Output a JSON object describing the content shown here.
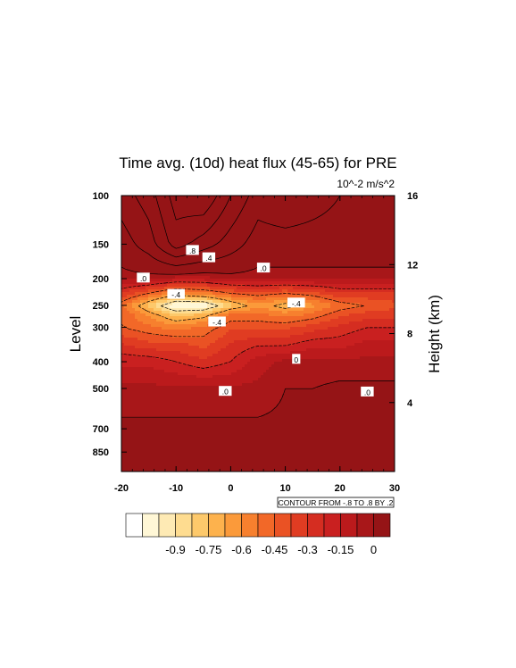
{
  "chart_data": {
    "type": "heatmap",
    "title": "Time avg. (10d) heat flux (45-65) for PRE",
    "units": "10^-2 m/s^2",
    "xlabel": "",
    "ylabel": "Level",
    "ylabel_right": "Height (km)",
    "xlim": [
      -20,
      30
    ],
    "x_ticks": [
      "-20",
      "-10",
      "0",
      "10",
      "20",
      "30"
    ],
    "y_scale": "log",
    "ylim": [
      100,
      1000
    ],
    "y_ticks": [
      "100",
      "150",
      "200",
      "250",
      "300",
      "400",
      "500",
      "700",
      "850"
    ],
    "y_right_ticks": [
      "16",
      "12",
      "8",
      "4"
    ],
    "contour_info": "CONTOUR FROM -.8 TO .8 BY .2",
    "contour_labels": [
      {
        "text": ".8",
        "x": -7,
        "p": 158
      },
      {
        "text": ".4",
        "x": -4,
        "p": 168
      },
      {
        "text": ".0",
        "x": 6,
        "p": 183
      },
      {
        "text": ".0",
        "x": -16,
        "p": 199
      },
      {
        "text": "-.4",
        "x": -10,
        "p": 228
      },
      {
        "text": "-.4",
        "x": 12,
        "p": 245
      },
      {
        "text": "-.4",
        "x": -2.5,
        "p": 287
      },
      {
        "text": "0",
        "x": 12,
        "p": 392
      },
      {
        "text": ".0",
        "x": -1,
        "p": 512
      },
      {
        "text": ".0",
        "x": 25,
        "p": 515
      }
    ],
    "fields": {
      "x": [
        -20,
        -15,
        -10,
        -5,
        0,
        5,
        10,
        15,
        20,
        25,
        30
      ],
      "p": [
        100,
        150,
        200,
        230,
        250,
        270,
        300,
        350,
        400,
        500,
        700,
        850,
        1000
      ],
      "values": [
        [
          0.3,
          0.5,
          0.9,
          1.0,
          0.6,
          0.3,
          0.4,
          0.3,
          0.2,
          0.2,
          0.2
        ],
        [
          0.1,
          0.3,
          0.7,
          0.5,
          0.3,
          0.1,
          0.1,
          0.1,
          0.1,
          0.1,
          0.1
        ],
        [
          -0.05,
          -0.05,
          -0.1,
          -0.1,
          -0.05,
          -0.05,
          -0.05,
          -0.05,
          -0.05,
          -0.05,
          -0.05
        ],
        [
          -0.3,
          -0.45,
          -0.6,
          -0.55,
          -0.45,
          -0.4,
          -0.45,
          -0.4,
          -0.3,
          -0.3,
          -0.3
        ],
        [
          -0.45,
          -0.7,
          -0.95,
          -0.95,
          -0.7,
          -0.55,
          -0.65,
          -0.55,
          -0.45,
          -0.4,
          -0.35
        ],
        [
          -0.4,
          -0.55,
          -0.7,
          -0.65,
          -0.45,
          -0.45,
          -0.5,
          -0.45,
          -0.35,
          -0.3,
          -0.3
        ],
        [
          -0.4,
          -0.45,
          -0.5,
          -0.45,
          -0.35,
          -0.35,
          -0.35,
          -0.3,
          -0.25,
          -0.2,
          -0.2
        ],
        [
          -0.25,
          -0.3,
          -0.3,
          -0.35,
          -0.25,
          -0.2,
          -0.2,
          -0.15,
          -0.15,
          -0.1,
          -0.1
        ],
        [
          -0.15,
          -0.15,
          -0.2,
          -0.25,
          -0.2,
          -0.1,
          -0.05,
          -0.05,
          -0.05,
          -0.05,
          -0.05
        ],
        [
          -0.05,
          -0.05,
          -0.05,
          -0.05,
          -0.05,
          -0.05,
          0.0,
          0.0,
          0.02,
          0.02,
          0.02
        ],
        [
          0.02,
          0.02,
          0.02,
          0.02,
          0.02,
          0.02,
          0.02,
          0.02,
          0.02,
          0.02,
          0.02
        ],
        [
          0.02,
          0.02,
          0.02,
          0.02,
          0.02,
          0.02,
          0.02,
          0.02,
          0.02,
          0.02,
          0.02
        ],
        [
          0.02,
          0.02,
          0.02,
          0.02,
          0.02,
          0.02,
          0.02,
          0.02,
          0.02,
          0.02,
          0.02
        ]
      ]
    },
    "colorbar": {
      "tick_labels": [
        "-0.9",
        "-0.75",
        "-0.6",
        "-0.45",
        "-0.3",
        "-0.15",
        "0"
      ],
      "colors": [
        "#ffffff",
        "#fff7d6",
        "#feeab4",
        "#fedc90",
        "#fdc96b",
        "#fdb24d",
        "#fb9a3a",
        "#f7802e",
        "#f26828",
        "#ea5224",
        "#e03c22",
        "#d52d21",
        "#c92020",
        "#bb1a1c",
        "#a81719",
        "#951416"
      ]
    }
  }
}
